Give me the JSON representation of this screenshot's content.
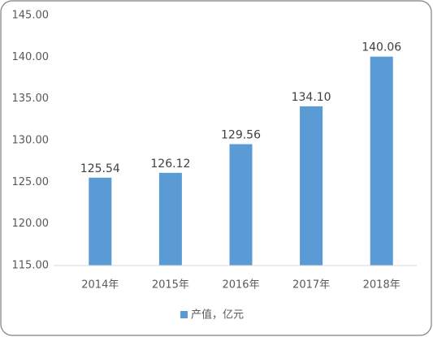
{
  "chart_data": {
    "type": "bar",
    "categories": [
      "2014年",
      "2015年",
      "2016年",
      "2017年",
      "2018年"
    ],
    "series": [
      {
        "name": "产值，亿元",
        "color": "#5b9bd5",
        "values": [
          125.54,
          126.12,
          129.56,
          134.1,
          140.06
        ]
      }
    ],
    "value_labels": [
      "125.54",
      "126.12",
      "129.56",
      "134.10",
      "140.06"
    ],
    "ylim": [
      115,
      145
    ],
    "yticks": [
      {
        "value": 115,
        "label": "115.00"
      },
      {
        "value": 120,
        "label": "120.00"
      },
      {
        "value": 125,
        "label": "125.00"
      },
      {
        "value": 130,
        "label": "130.00"
      },
      {
        "value": 135,
        "label": "135.00"
      },
      {
        "value": 140,
        "label": "140.00"
      },
      {
        "value": 145,
        "label": "145.00"
      }
    ],
    "grid": false,
    "legend": "bottom"
  }
}
